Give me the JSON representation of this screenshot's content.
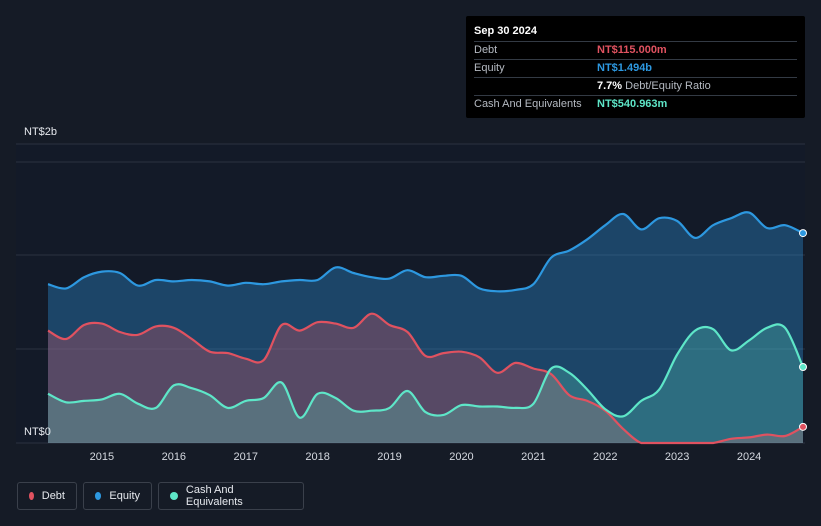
{
  "tooltip": {
    "date": "Sep 30 2024",
    "rows": [
      {
        "label": "Debt",
        "value": "NT$115.000m",
        "color": "#e05260"
      },
      {
        "label": "Equity",
        "value": "NT$1.494b",
        "color": "#2d98e0"
      },
      {
        "label": "",
        "value": "7.7%",
        "suffix": "Debt/Equity Ratio",
        "color": "#ffffff"
      },
      {
        "label": "Cash And Equivalents",
        "value": "NT$540.963m",
        "color": "#5ee6c8"
      }
    ]
  },
  "legend": [
    {
      "label": "Debt",
      "color": "#e05260"
    },
    {
      "label": "Equity",
      "color": "#2d98e0"
    },
    {
      "label": "Cash And Equivalents",
      "color": "#5ee6c8"
    }
  ],
  "chart_data": {
    "type": "area",
    "ylabels": {
      "top": "NT$2b",
      "bottom": "NT$0"
    },
    "x_ticks": [
      "2015",
      "2016",
      "2017",
      "2018",
      "2019",
      "2020",
      "2021",
      "2022",
      "2023",
      "2024"
    ],
    "x_tick_years": [
      2015,
      2016,
      2017,
      2018,
      2019,
      2020,
      2021,
      2022,
      2023,
      2024
    ],
    "xlim": [
      2014.25,
      2024.75
    ],
    "ylim": [
      0,
      2.0
    ],
    "y_unit": "NT$ billions",
    "grid": true,
    "series": [
      {
        "name": "Equity",
        "color": "#2d98e0",
        "points": [
          [
            2014.25,
            1.13
          ],
          [
            2014.5,
            1.1
          ],
          [
            2014.75,
            1.18
          ],
          [
            2015,
            1.22
          ],
          [
            2015.25,
            1.21
          ],
          [
            2015.5,
            1.12
          ],
          [
            2015.75,
            1.16
          ],
          [
            2016,
            1.15
          ],
          [
            2016.25,
            1.16
          ],
          [
            2016.5,
            1.15
          ],
          [
            2016.75,
            1.12
          ],
          [
            2017,
            1.14
          ],
          [
            2017.25,
            1.13
          ],
          [
            2017.5,
            1.15
          ],
          [
            2017.75,
            1.16
          ],
          [
            2018,
            1.16
          ],
          [
            2018.25,
            1.25
          ],
          [
            2018.5,
            1.21
          ],
          [
            2018.75,
            1.18
          ],
          [
            2019,
            1.17
          ],
          [
            2019.25,
            1.23
          ],
          [
            2019.5,
            1.18
          ],
          [
            2019.75,
            1.19
          ],
          [
            2020,
            1.19
          ],
          [
            2020.25,
            1.1
          ],
          [
            2020.5,
            1.08
          ],
          [
            2020.75,
            1.09
          ],
          [
            2021,
            1.13
          ],
          [
            2021.25,
            1.32
          ],
          [
            2021.5,
            1.37
          ],
          [
            2021.75,
            1.45
          ],
          [
            2022,
            1.55
          ],
          [
            2022.25,
            1.63
          ],
          [
            2022.5,
            1.52
          ],
          [
            2022.75,
            1.6
          ],
          [
            2023,
            1.58
          ],
          [
            2023.25,
            1.46
          ],
          [
            2023.5,
            1.55
          ],
          [
            2023.75,
            1.6
          ],
          [
            2024,
            1.64
          ],
          [
            2024.25,
            1.53
          ],
          [
            2024.5,
            1.55
          ],
          [
            2024.75,
            1.494
          ]
        ]
      },
      {
        "name": "Debt",
        "color": "#e05260",
        "points": [
          [
            2014.25,
            0.8
          ],
          [
            2014.5,
            0.74
          ],
          [
            2014.75,
            0.84
          ],
          [
            2015,
            0.85
          ],
          [
            2015.25,
            0.79
          ],
          [
            2015.5,
            0.77
          ],
          [
            2015.75,
            0.83
          ],
          [
            2016,
            0.82
          ],
          [
            2016.25,
            0.74
          ],
          [
            2016.5,
            0.65
          ],
          [
            2016.75,
            0.64
          ],
          [
            2017,
            0.6
          ],
          [
            2017.25,
            0.59
          ],
          [
            2017.5,
            0.84
          ],
          [
            2017.75,
            0.8
          ],
          [
            2018,
            0.86
          ],
          [
            2018.25,
            0.85
          ],
          [
            2018.5,
            0.82
          ],
          [
            2018.75,
            0.92
          ],
          [
            2019,
            0.84
          ],
          [
            2019.25,
            0.79
          ],
          [
            2019.5,
            0.62
          ],
          [
            2019.75,
            0.64
          ],
          [
            2020,
            0.65
          ],
          [
            2020.25,
            0.61
          ],
          [
            2020.5,
            0.5
          ],
          [
            2020.75,
            0.57
          ],
          [
            2021,
            0.53
          ],
          [
            2021.25,
            0.49
          ],
          [
            2021.5,
            0.34
          ],
          [
            2021.75,
            0.3
          ],
          [
            2022,
            0.23
          ],
          [
            2022.25,
            0.1
          ],
          [
            2022.5,
            0.0
          ],
          [
            2022.75,
            0.0
          ],
          [
            2023,
            0.0
          ],
          [
            2023.25,
            0.0
          ],
          [
            2023.5,
            0.0
          ],
          [
            2023.75,
            0.03
          ],
          [
            2024,
            0.04
          ],
          [
            2024.25,
            0.06
          ],
          [
            2024.5,
            0.05
          ],
          [
            2024.75,
            0.115
          ]
        ]
      },
      {
        "name": "Cash And Equivalents",
        "color": "#5ee6c8",
        "points": [
          [
            2014.25,
            0.35
          ],
          [
            2014.5,
            0.29
          ],
          [
            2014.75,
            0.3
          ],
          [
            2015,
            0.31
          ],
          [
            2015.25,
            0.35
          ],
          [
            2015.5,
            0.28
          ],
          [
            2015.75,
            0.25
          ],
          [
            2016,
            0.41
          ],
          [
            2016.25,
            0.39
          ],
          [
            2016.5,
            0.34
          ],
          [
            2016.75,
            0.25
          ],
          [
            2017,
            0.3
          ],
          [
            2017.25,
            0.32
          ],
          [
            2017.5,
            0.43
          ],
          [
            2017.75,
            0.18
          ],
          [
            2018,
            0.35
          ],
          [
            2018.25,
            0.32
          ],
          [
            2018.5,
            0.23
          ],
          [
            2018.75,
            0.23
          ],
          [
            2019,
            0.25
          ],
          [
            2019.25,
            0.37
          ],
          [
            2019.5,
            0.22
          ],
          [
            2019.75,
            0.2
          ],
          [
            2020,
            0.27
          ],
          [
            2020.25,
            0.26
          ],
          [
            2020.5,
            0.26
          ],
          [
            2020.75,
            0.25
          ],
          [
            2021,
            0.28
          ],
          [
            2021.25,
            0.53
          ],
          [
            2021.5,
            0.5
          ],
          [
            2021.75,
            0.38
          ],
          [
            2022,
            0.24
          ],
          [
            2022.25,
            0.19
          ],
          [
            2022.5,
            0.3
          ],
          [
            2022.75,
            0.38
          ],
          [
            2023,
            0.63
          ],
          [
            2023.25,
            0.8
          ],
          [
            2023.5,
            0.81
          ],
          [
            2023.75,
            0.66
          ],
          [
            2024,
            0.73
          ],
          [
            2024.25,
            0.82
          ],
          [
            2024.5,
            0.82
          ],
          [
            2024.75,
            0.541
          ]
        ]
      }
    ]
  }
}
